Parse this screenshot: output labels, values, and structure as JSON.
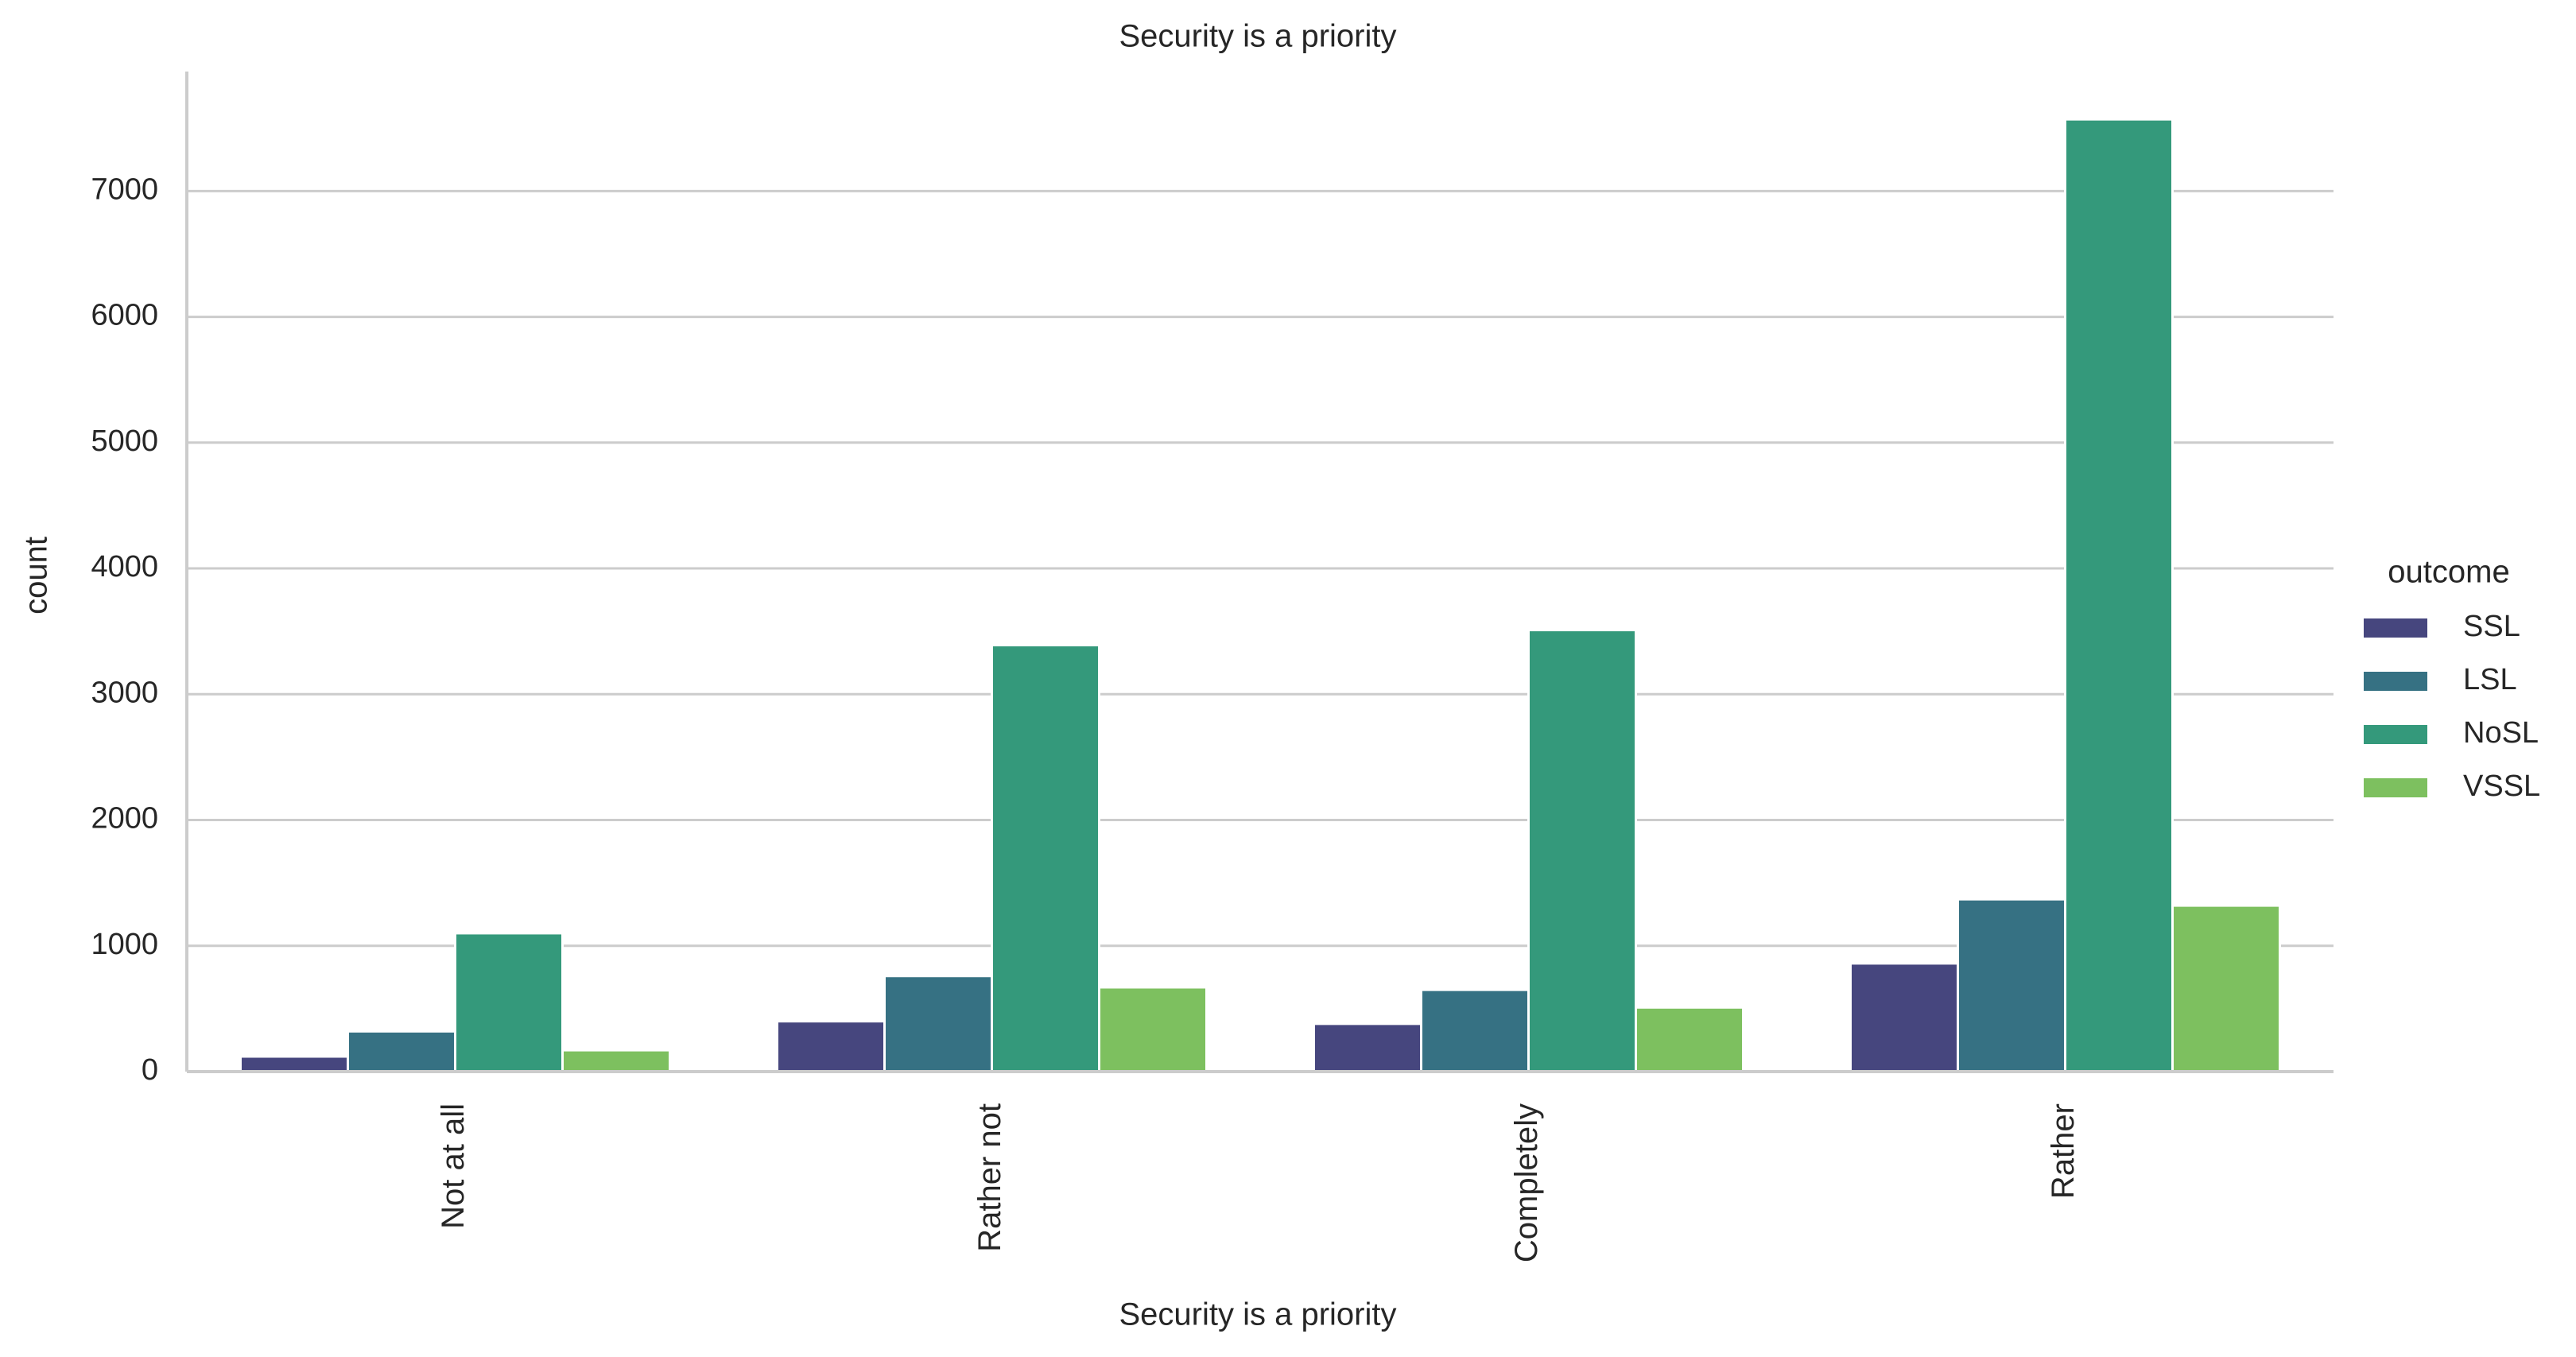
{
  "chart_data": {
    "type": "bar",
    "title": "Security is a priority",
    "xlabel": "Security is a priority",
    "ylabel": "count",
    "ylim": [
      0,
      8000
    ],
    "yticks": [
      0,
      1000,
      2000,
      3000,
      4000,
      5000,
      6000,
      7000
    ],
    "grid": "horizontal",
    "categories": [
      "Not at all",
      "Rather not",
      "Completely",
      "Rather"
    ],
    "legend": {
      "title": "outcome",
      "placement": "right"
    },
    "series": [
      {
        "name": "SSL",
        "color": "#46467e",
        "values": [
          120,
          400,
          380,
          860
        ]
      },
      {
        "name": "LSL",
        "color": "#367183",
        "values": [
          320,
          760,
          650,
          1370
        ]
      },
      {
        "name": "NoSL",
        "color": "#34997b",
        "values": [
          1100,
          3390,
          3510,
          7570
        ]
      },
      {
        "name": "VSSL",
        "color": "#7dc05f",
        "values": [
          170,
          670,
          510,
          1320
        ]
      }
    ]
  }
}
